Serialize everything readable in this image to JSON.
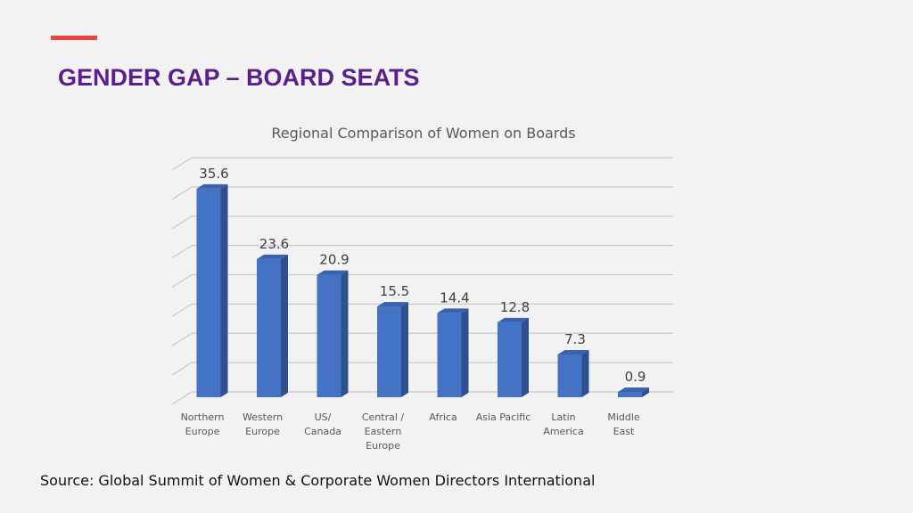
{
  "slide": {
    "title": "GENDER GAP – BOARD SEATS",
    "accent_color": "#e8453c",
    "title_color": "#5a1f8a",
    "source": "Source: Global Summit of Women & Corporate Women Directors International"
  },
  "chart_data": {
    "type": "bar",
    "title": "Regional Comparison of Women on Boards",
    "categories": [
      [
        "Northern",
        "Europe"
      ],
      [
        "Western",
        "Europe"
      ],
      [
        "US/",
        "Canada"
      ],
      [
        "Central /",
        "Eastern",
        "Europe"
      ],
      [
        "Africa"
      ],
      [
        "Asia Pacific"
      ],
      [
        "Latin",
        "America"
      ],
      [
        "Middle",
        "East"
      ]
    ],
    "values": [
      35.6,
      23.6,
      20.9,
      15.5,
      14.4,
      12.8,
      7.3,
      0.9
    ],
    "value_labels": [
      "35.6",
      "23.6",
      "20.9",
      "15.5",
      "14.4",
      "12.8",
      "7.3",
      "0.9"
    ],
    "ylim": [
      0,
      40
    ],
    "gridlines": true,
    "style": "3d-column",
    "bar_color": "#4472c4",
    "xlabel": "",
    "ylabel": ""
  }
}
